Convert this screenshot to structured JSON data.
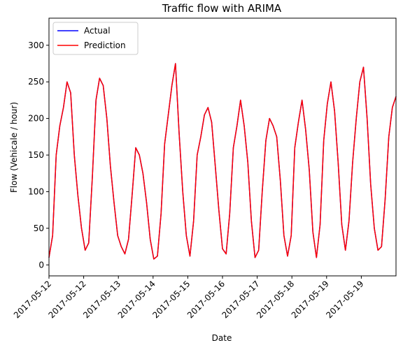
{
  "chart_data": {
    "type": "line",
    "title": "Traffic flow with ARIMA",
    "xlabel": "Date",
    "ylabel": "Flow (Vehicale / hour)",
    "ylim": [
      -15,
      337
    ],
    "xlim": [
      "2017-05-12T00:00",
      "2017-05-20T00:00"
    ],
    "grid": false,
    "legend_position": "top-left",
    "x_ticks": [
      "2017-05-12",
      "2017-05-12",
      "2017-05-13",
      "2017-05-14",
      "2017-05-15",
      "2017-05-16",
      "2017-05-17",
      "2017-05-18",
      "2017-05-19",
      "2017-05-19"
    ],
    "y_ticks": [
      0,
      50,
      100,
      150,
      200,
      250,
      300
    ],
    "series": [
      {
        "name": "Actual",
        "color": "#0000ff",
        "x": [
          "2017-05-12T00:00",
          "2017-05-12T02:00",
          "2017-05-12T04:00",
          "2017-05-12T06:00",
          "2017-05-12T08:00",
          "2017-05-12T10:00",
          "2017-05-12T12:00",
          "2017-05-12T14:00",
          "2017-05-12T16:00",
          "2017-05-12T18:00",
          "2017-05-12T20:00",
          "2017-05-12T22:00",
          "2017-05-13T00:00",
          "2017-05-13T02:00",
          "2017-05-13T04:00",
          "2017-05-13T06:00",
          "2017-05-13T08:00",
          "2017-05-13T10:00",
          "2017-05-13T12:00",
          "2017-05-13T14:00",
          "2017-05-13T16:00",
          "2017-05-13T18:00",
          "2017-05-13T20:00",
          "2017-05-13T22:00",
          "2017-05-14T00:00",
          "2017-05-14T02:00",
          "2017-05-14T04:00",
          "2017-05-14T06:00",
          "2017-05-14T08:00",
          "2017-05-14T10:00",
          "2017-05-14T12:00",
          "2017-05-14T14:00",
          "2017-05-14T16:00",
          "2017-05-14T18:00",
          "2017-05-14T20:00",
          "2017-05-14T22:00",
          "2017-05-15T00:00",
          "2017-05-15T02:00",
          "2017-05-15T04:00",
          "2017-05-15T06:00",
          "2017-05-15T08:00",
          "2017-05-15T10:00",
          "2017-05-15T12:00",
          "2017-05-15T14:00",
          "2017-05-15T16:00",
          "2017-05-15T18:00",
          "2017-05-15T20:00",
          "2017-05-15T22:00",
          "2017-05-16T00:00",
          "2017-05-16T02:00",
          "2017-05-16T04:00",
          "2017-05-16T06:00",
          "2017-05-16T08:00",
          "2017-05-16T10:00",
          "2017-05-16T12:00",
          "2017-05-16T14:00",
          "2017-05-16T16:00",
          "2017-05-16T18:00",
          "2017-05-16T20:00",
          "2017-05-16T22:00",
          "2017-05-17T00:00",
          "2017-05-17T02:00",
          "2017-05-17T04:00",
          "2017-05-17T06:00",
          "2017-05-17T08:00",
          "2017-05-17T10:00",
          "2017-05-17T12:00",
          "2017-05-17T14:00",
          "2017-05-17T16:00",
          "2017-05-17T18:00",
          "2017-05-17T20:00",
          "2017-05-17T22:00",
          "2017-05-18T00:00",
          "2017-05-18T02:00",
          "2017-05-18T04:00",
          "2017-05-18T06:00",
          "2017-05-18T08:00",
          "2017-05-18T10:00",
          "2017-05-18T12:00",
          "2017-05-18T14:00",
          "2017-05-18T16:00",
          "2017-05-18T18:00",
          "2017-05-18T20:00",
          "2017-05-18T22:00",
          "2017-05-19T00:00",
          "2017-05-19T02:00",
          "2017-05-19T04:00",
          "2017-05-19T06:00",
          "2017-05-19T08:00",
          "2017-05-19T10:00",
          "2017-05-19T12:00",
          "2017-05-19T14:00",
          "2017-05-19T16:00",
          "2017-05-19T18:00",
          "2017-05-19T20:00",
          "2017-05-19T22:00",
          "2017-05-20T00:00"
        ],
        "values": [
          10,
          40,
          150,
          190,
          215,
          250,
          235,
          150,
          95,
          50,
          20,
          30,
          120,
          225,
          255,
          245,
          200,
          135,
          85,
          40,
          25,
          15,
          35,
          95,
          160,
          150,
          125,
          85,
          35,
          8,
          12,
          70,
          165,
          205,
          245,
          275,
          180,
          100,
          40,
          12,
          60,
          150,
          175,
          205,
          215,
          195,
          135,
          75,
          22,
          15,
          70,
          160,
          190,
          225,
          190,
          140,
          60,
          10,
          20,
          100,
          170,
          200,
          190,
          175,
          115,
          40,
          12,
          40,
          160,
          195,
          225,
          185,
          130,
          45,
          10,
          55,
          170,
          220,
          250,
          210,
          140,
          55,
          20,
          60,
          140,
          200,
          250,
          270,
          200,
          110,
          50,
          20,
          25,
          90,
          175,
          215,
          230
        ]
      },
      {
        "name": "Prediction",
        "color": "#ff0000",
        "x": [
          "2017-05-12T00:00",
          "2017-05-12T02:00",
          "2017-05-12T04:00",
          "2017-05-12T06:00",
          "2017-05-12T08:00",
          "2017-05-12T10:00",
          "2017-05-12T12:00",
          "2017-05-12T14:00",
          "2017-05-12T16:00",
          "2017-05-12T18:00",
          "2017-05-12T20:00",
          "2017-05-12T22:00",
          "2017-05-13T00:00",
          "2017-05-13T02:00",
          "2017-05-13T04:00",
          "2017-05-13T06:00",
          "2017-05-13T08:00",
          "2017-05-13T10:00",
          "2017-05-13T12:00",
          "2017-05-13T14:00",
          "2017-05-13T16:00",
          "2017-05-13T18:00",
          "2017-05-13T20:00",
          "2017-05-13T22:00",
          "2017-05-14T00:00",
          "2017-05-14T02:00",
          "2017-05-14T04:00",
          "2017-05-14T06:00",
          "2017-05-14T08:00",
          "2017-05-14T10:00",
          "2017-05-14T12:00",
          "2017-05-14T14:00",
          "2017-05-14T16:00",
          "2017-05-14T18:00",
          "2017-05-14T20:00",
          "2017-05-14T22:00",
          "2017-05-15T00:00",
          "2017-05-15T02:00",
          "2017-05-15T04:00",
          "2017-05-15T06:00",
          "2017-05-15T08:00",
          "2017-05-15T10:00",
          "2017-05-15T12:00",
          "2017-05-15T14:00",
          "2017-05-15T16:00",
          "2017-05-15T18:00",
          "2017-05-15T20:00",
          "2017-05-15T22:00",
          "2017-05-16T00:00",
          "2017-05-16T02:00",
          "2017-05-16T04:00",
          "2017-05-16T06:00",
          "2017-05-16T08:00",
          "2017-05-16T10:00",
          "2017-05-16T12:00",
          "2017-05-16T14:00",
          "2017-05-16T16:00",
          "2017-05-16T18:00",
          "2017-05-16T20:00",
          "2017-05-16T22:00",
          "2017-05-17T00:00",
          "2017-05-17T02:00",
          "2017-05-17T04:00",
          "2017-05-17T06:00",
          "2017-05-17T08:00",
          "2017-05-17T10:00",
          "2017-05-17T12:00",
          "2017-05-17T14:00",
          "2017-05-17T16:00",
          "2017-05-17T18:00",
          "2017-05-17T20:00",
          "2017-05-17T22:00",
          "2017-05-18T00:00",
          "2017-05-18T02:00",
          "2017-05-18T04:00",
          "2017-05-18T06:00",
          "2017-05-18T08:00",
          "2017-05-18T10:00",
          "2017-05-18T12:00",
          "2017-05-18T14:00",
          "2017-05-18T16:00",
          "2017-05-18T18:00",
          "2017-05-18T20:00",
          "2017-05-18T22:00",
          "2017-05-19T00:00",
          "2017-05-19T02:00",
          "2017-05-19T04:00",
          "2017-05-19T06:00",
          "2017-05-19T08:00",
          "2017-05-19T10:00",
          "2017-05-19T12:00",
          "2017-05-19T14:00",
          "2017-05-19T16:00",
          "2017-05-19T18:00",
          "2017-05-19T20:00",
          "2017-05-19T22:00",
          "2017-05-20T00:00"
        ],
        "values": [
          10,
          40,
          150,
          190,
          215,
          250,
          235,
          150,
          95,
          50,
          20,
          30,
          120,
          225,
          255,
          245,
          200,
          135,
          85,
          40,
          25,
          15,
          35,
          95,
          160,
          150,
          125,
          85,
          35,
          8,
          12,
          70,
          165,
          205,
          245,
          275,
          180,
          100,
          40,
          12,
          60,
          150,
          175,
          205,
          215,
          195,
          135,
          75,
          22,
          15,
          70,
          160,
          190,
          225,
          190,
          140,
          60,
          10,
          20,
          100,
          170,
          200,
          190,
          175,
          115,
          40,
          12,
          40,
          160,
          195,
          225,
          185,
          130,
          45,
          10,
          55,
          170,
          220,
          250,
          210,
          140,
          55,
          20,
          60,
          140,
          200,
          250,
          270,
          200,
          110,
          50,
          20,
          25,
          90,
          175,
          215,
          230
        ]
      }
    ]
  }
}
